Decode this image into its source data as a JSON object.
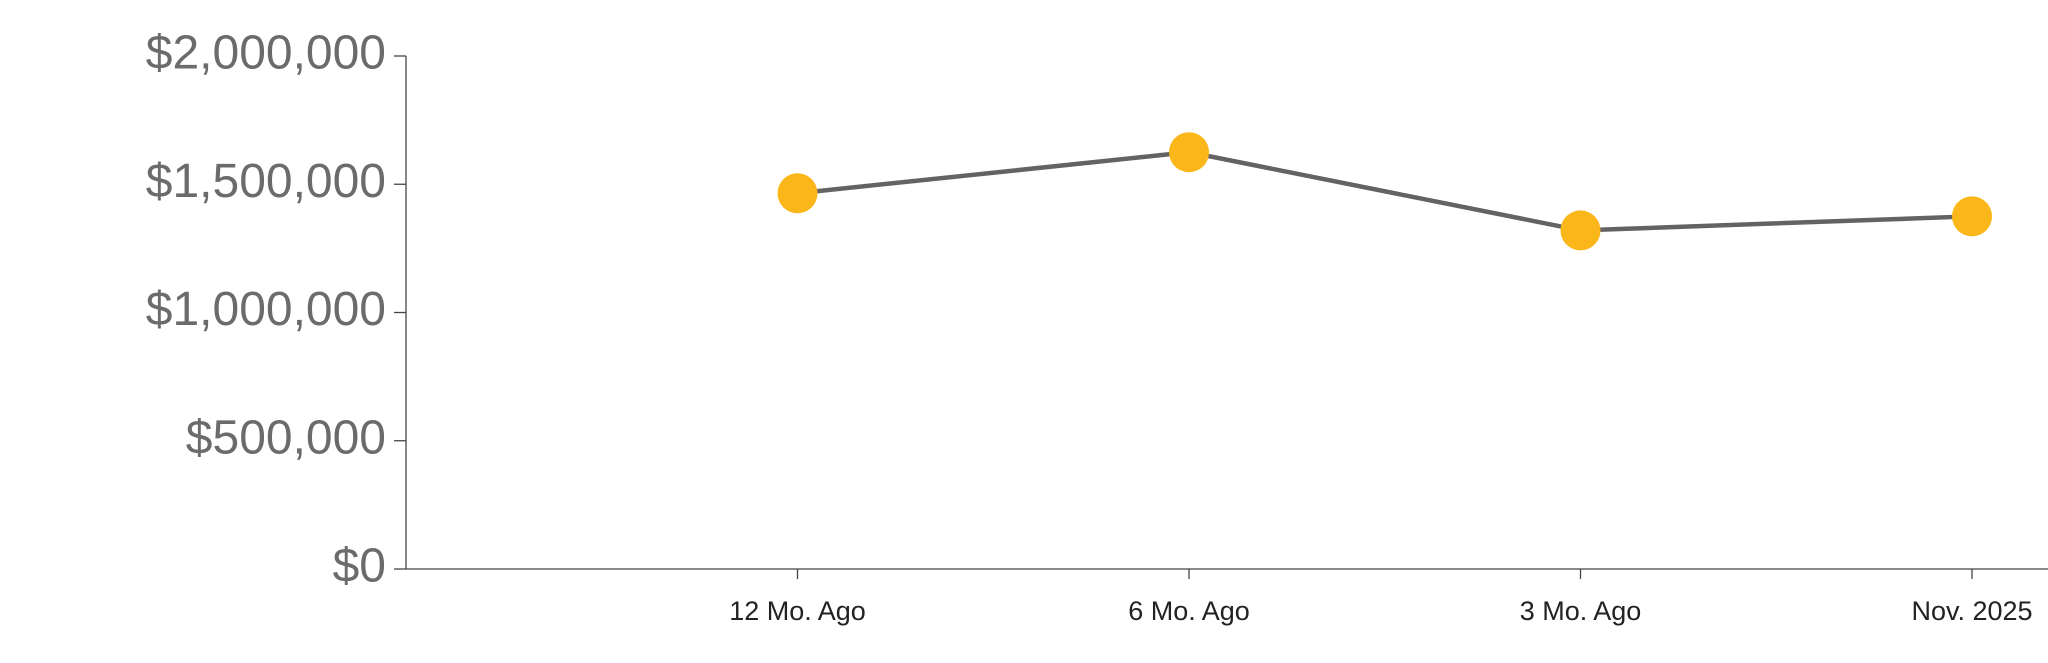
{
  "chart_data": {
    "type": "line",
    "categories": [
      "12 Mo. Ago",
      "6 Mo. Ago",
      "3 Mo. Ago",
      "Nov. 2025"
    ],
    "series": [
      {
        "values": [
          1465000,
          1625000,
          1320000,
          1375000
        ],
        "color": "#636363",
        "marker_color": "#fbb619"
      }
    ],
    "ylim": [
      0,
      2000000
    ],
    "yticks": [
      {
        "value": 0,
        "label": "$0"
      },
      {
        "value": 500000,
        "label": "$500,000"
      },
      {
        "value": 1000000,
        "label": "$1,000,000"
      },
      {
        "value": 1500000,
        "label": "$1,500,000"
      },
      {
        "value": 2000000,
        "label": "$2,000,000"
      }
    ]
  }
}
